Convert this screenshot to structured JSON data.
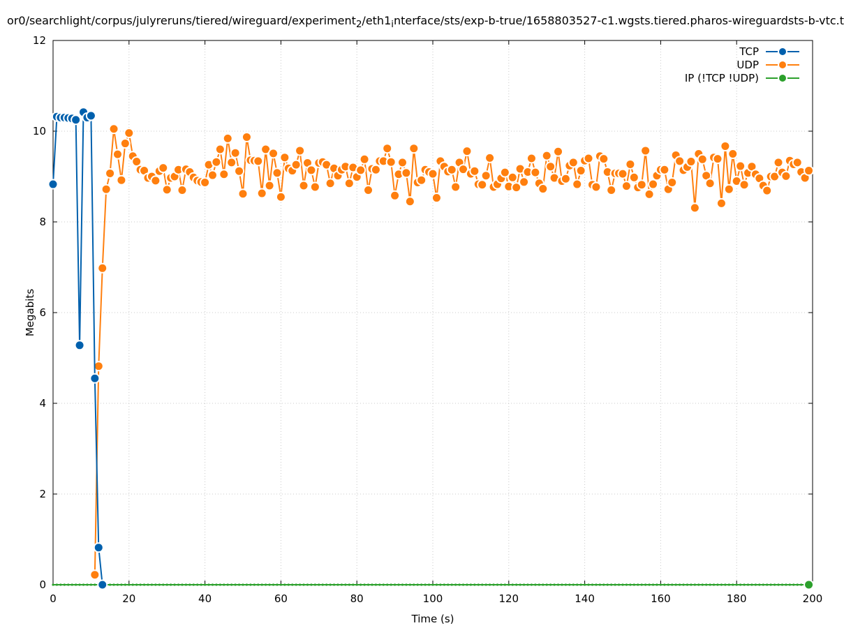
{
  "chart_data": {
    "type": "line",
    "title": "or0/searchlight/corpus/julyreruns/tiered/wireguard/experiment_2/eth1_interface/sts/exp-b-true/1658803527-c1.wgsts.tiered.pharos-wireguardsts-b-vtc.t",
    "title_parts": {
      "p1": "or0/searchlight/corpus/julyreruns/tiered/wireguard/experiment",
      "sub1": "2",
      "p2": "/eth1",
      "sub2": "i",
      "p3": "nterface/sts/exp-b-true/1658803527-c1.wgsts.tiered.pharos-wireguardsts-b-vtc.t"
    },
    "xlabel": "Time (s)",
    "ylabel": "Megabits",
    "xlim": [
      0,
      200
    ],
    "ylim": [
      0,
      12
    ],
    "xticks": [
      0,
      20,
      40,
      60,
      80,
      100,
      120,
      140,
      160,
      180,
      200
    ],
    "yticks": [
      0,
      2,
      4,
      6,
      8,
      10,
      12
    ],
    "grid": true,
    "legend_position": "top-right",
    "colors": {
      "TCP": "#0060ad",
      "UDP": "#ff7f0e",
      "IP": "#2ca02c"
    },
    "series": [
      {
        "name": "TCP",
        "color": "#0060ad",
        "x": [
          0,
          1,
          2,
          3,
          4,
          5,
          6,
          7,
          8,
          9,
          10,
          11,
          12,
          13
        ],
        "y": [
          8.83,
          10.32,
          10.3,
          10.3,
          10.29,
          10.28,
          10.25,
          5.28,
          10.42,
          10.3,
          10.34,
          4.55,
          0.82,
          0.0
        ]
      },
      {
        "name": "UDP",
        "color": "#ff7f0e",
        "x": [
          11,
          12,
          13,
          14,
          15,
          16,
          17,
          18,
          19,
          20,
          21,
          22,
          23,
          24,
          25,
          26,
          27,
          28,
          29,
          30,
          31,
          32,
          33,
          34,
          35,
          36,
          37,
          38,
          39,
          40,
          41,
          42,
          43,
          44,
          45,
          46,
          47,
          48,
          49,
          50,
          51,
          52,
          53,
          54,
          55,
          56,
          57,
          58,
          59,
          60,
          61,
          62,
          63,
          64,
          65,
          66,
          67,
          68,
          69,
          70,
          71,
          72,
          73,
          74,
          75,
          76,
          77,
          78,
          79,
          80,
          81,
          82,
          83,
          84,
          85,
          86,
          87,
          88,
          89,
          90,
          91,
          92,
          93,
          94,
          95,
          96,
          97,
          98,
          99,
          100,
          101,
          102,
          103,
          104,
          105,
          106,
          107,
          108,
          109,
          110,
          111,
          112,
          113,
          114,
          115,
          116,
          117,
          118,
          119,
          120,
          121,
          122,
          123,
          124,
          125,
          126,
          127,
          128,
          129,
          130,
          131,
          132,
          133,
          134,
          135,
          136,
          137,
          138,
          139,
          140,
          141,
          142,
          143,
          144,
          145,
          146,
          147,
          148,
          149,
          150,
          151,
          152,
          153,
          154,
          155,
          156,
          157,
          158,
          159,
          160,
          161,
          162,
          163,
          164,
          165,
          166,
          167,
          168,
          169,
          170,
          171,
          172,
          173,
          174,
          175,
          176,
          177,
          178,
          179,
          180,
          181,
          182,
          183,
          184,
          185,
          186,
          187,
          188,
          189,
          190,
          191,
          192,
          193,
          194,
          195,
          196,
          197,
          198,
          199
        ],
        "y": [
          0.22,
          4.82,
          6.98,
          8.72,
          9.07,
          10.05,
          9.49,
          8.92,
          9.73,
          9.96,
          9.45,
          9.33,
          9.15,
          9.13,
          8.97,
          9.0,
          8.91,
          9.12,
          9.19,
          8.71,
          8.97,
          9.0,
          9.15,
          8.7,
          9.16,
          9.1,
          8.98,
          8.91,
          8.88,
          8.87,
          9.26,
          9.03,
          9.32,
          9.6,
          9.05,
          9.84,
          9.31,
          9.52,
          9.12,
          8.62,
          9.87,
          9.36,
          9.35,
          9.34,
          8.63,
          9.6,
          8.8,
          9.51,
          9.08,
          8.55,
          9.42,
          9.18,
          9.13,
          9.26,
          9.57,
          8.8,
          9.3,
          9.14,
          8.77,
          9.3,
          9.32,
          9.26,
          8.85,
          9.18,
          9.02,
          9.15,
          9.22,
          8.85,
          9.2,
          8.99,
          9.14,
          9.38,
          8.7,
          9.17,
          9.15,
          9.34,
          9.34,
          9.62,
          9.32,
          8.58,
          9.05,
          9.31,
          9.08,
          8.45,
          9.62,
          8.87,
          8.92,
          9.15,
          9.1,
          9.06,
          8.53,
          9.34,
          9.22,
          9.11,
          9.15,
          8.77,
          9.31,
          9.16,
          9.56,
          9.06,
          9.12,
          8.83,
          8.82,
          9.02,
          9.41,
          8.77,
          8.83,
          8.96,
          9.09,
          8.78,
          8.98,
          8.76,
          9.17,
          8.88,
          9.1,
          9.4,
          9.09,
          8.85,
          8.73,
          9.46,
          9.22,
          8.97,
          9.55,
          8.9,
          8.95,
          9.24,
          9.31,
          8.83,
          9.13,
          9.35,
          9.4,
          8.82,
          8.77,
          9.45,
          9.39,
          9.1,
          8.7,
          9.07,
          9.07,
          9.06,
          8.79,
          9.27,
          8.98,
          8.76,
          8.82,
          9.57,
          8.61,
          8.83,
          9.02,
          9.15,
          9.15,
          8.72,
          8.87,
          9.47,
          9.34,
          9.14,
          9.21,
          9.33,
          8.31,
          9.5,
          9.38,
          9.02,
          8.85,
          9.42,
          9.39,
          8.41,
          9.67,
          8.72,
          9.5,
          8.9,
          9.23,
          8.82,
          9.08,
          9.22,
          9.05,
          8.96,
          8.8,
          8.69,
          9.0,
          9.0,
          9.31,
          9.09,
          9.01,
          9.35,
          9.27,
          9.31,
          9.1,
          8.97,
          9.13
        ]
      },
      {
        "name": "IP (!TCP  !UDP)",
        "color": "#2ca02c",
        "x_start": 0,
        "x_end": 199,
        "x_step": 1,
        "y_constant": 0.0
      }
    ]
  }
}
